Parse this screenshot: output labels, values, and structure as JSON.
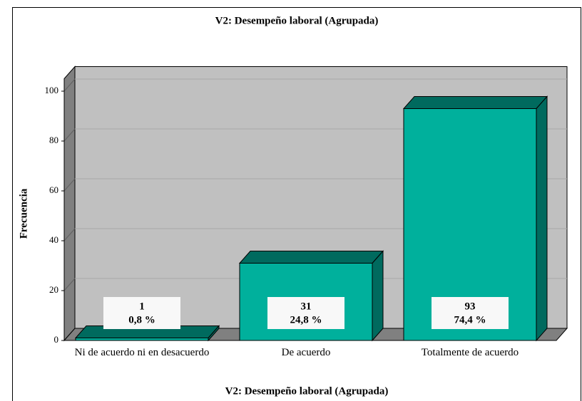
{
  "chart_data": {
    "type": "bar3d",
    "title": "V2: Desempeño laboral (Agrupada)",
    "x_label": "V2: Desempeño laboral (Agrupada)",
    "y_label": "Frecuencia",
    "categories": [
      "Ni de acuerdo ni en desacuerdo",
      "De acuerdo",
      "Totalmente de acuerdo"
    ],
    "values": [
      1,
      31,
      93
    ],
    "percentages": [
      0.8,
      24.8,
      74.4
    ],
    "percentage_labels": [
      "0,8 %",
      "24,8 %",
      "74,4 %"
    ],
    "color": "#00b09c",
    "ylim": [
      0,
      105
    ],
    "yticks": [
      0,
      20,
      40,
      60,
      80,
      100
    ],
    "grid": true
  }
}
